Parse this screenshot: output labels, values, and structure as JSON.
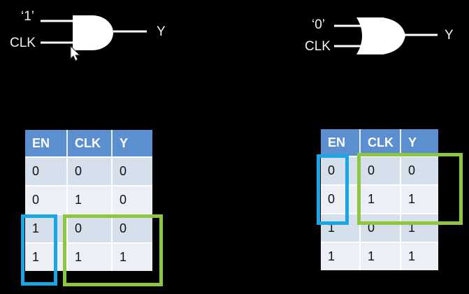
{
  "and_gate": {
    "input_a": "‘1’",
    "input_b": "CLK",
    "output": "Y"
  },
  "or_gate": {
    "input_a": "‘0’",
    "input_b": "CLK",
    "output": "Y"
  },
  "table_and": {
    "headers": [
      "EN",
      "CLK",
      "Y"
    ],
    "rows": [
      [
        "0",
        "0",
        "0"
      ],
      [
        "0",
        "1",
        "0"
      ],
      [
        "1",
        "0",
        "0"
      ],
      [
        "1",
        "1",
        "1"
      ]
    ]
  },
  "table_or": {
    "headers": [
      "EN",
      "CLK",
      "Y"
    ],
    "rows": [
      [
        "0",
        "0",
        "0"
      ],
      [
        "0",
        "1",
        "1"
      ],
      [
        "1",
        "0",
        "1"
      ],
      [
        "1",
        "1",
        "1"
      ]
    ]
  },
  "colors": {
    "header": "#5b8fd0",
    "blue_highlight": "#18a6e6",
    "green_highlight": "#8ec63f"
  }
}
